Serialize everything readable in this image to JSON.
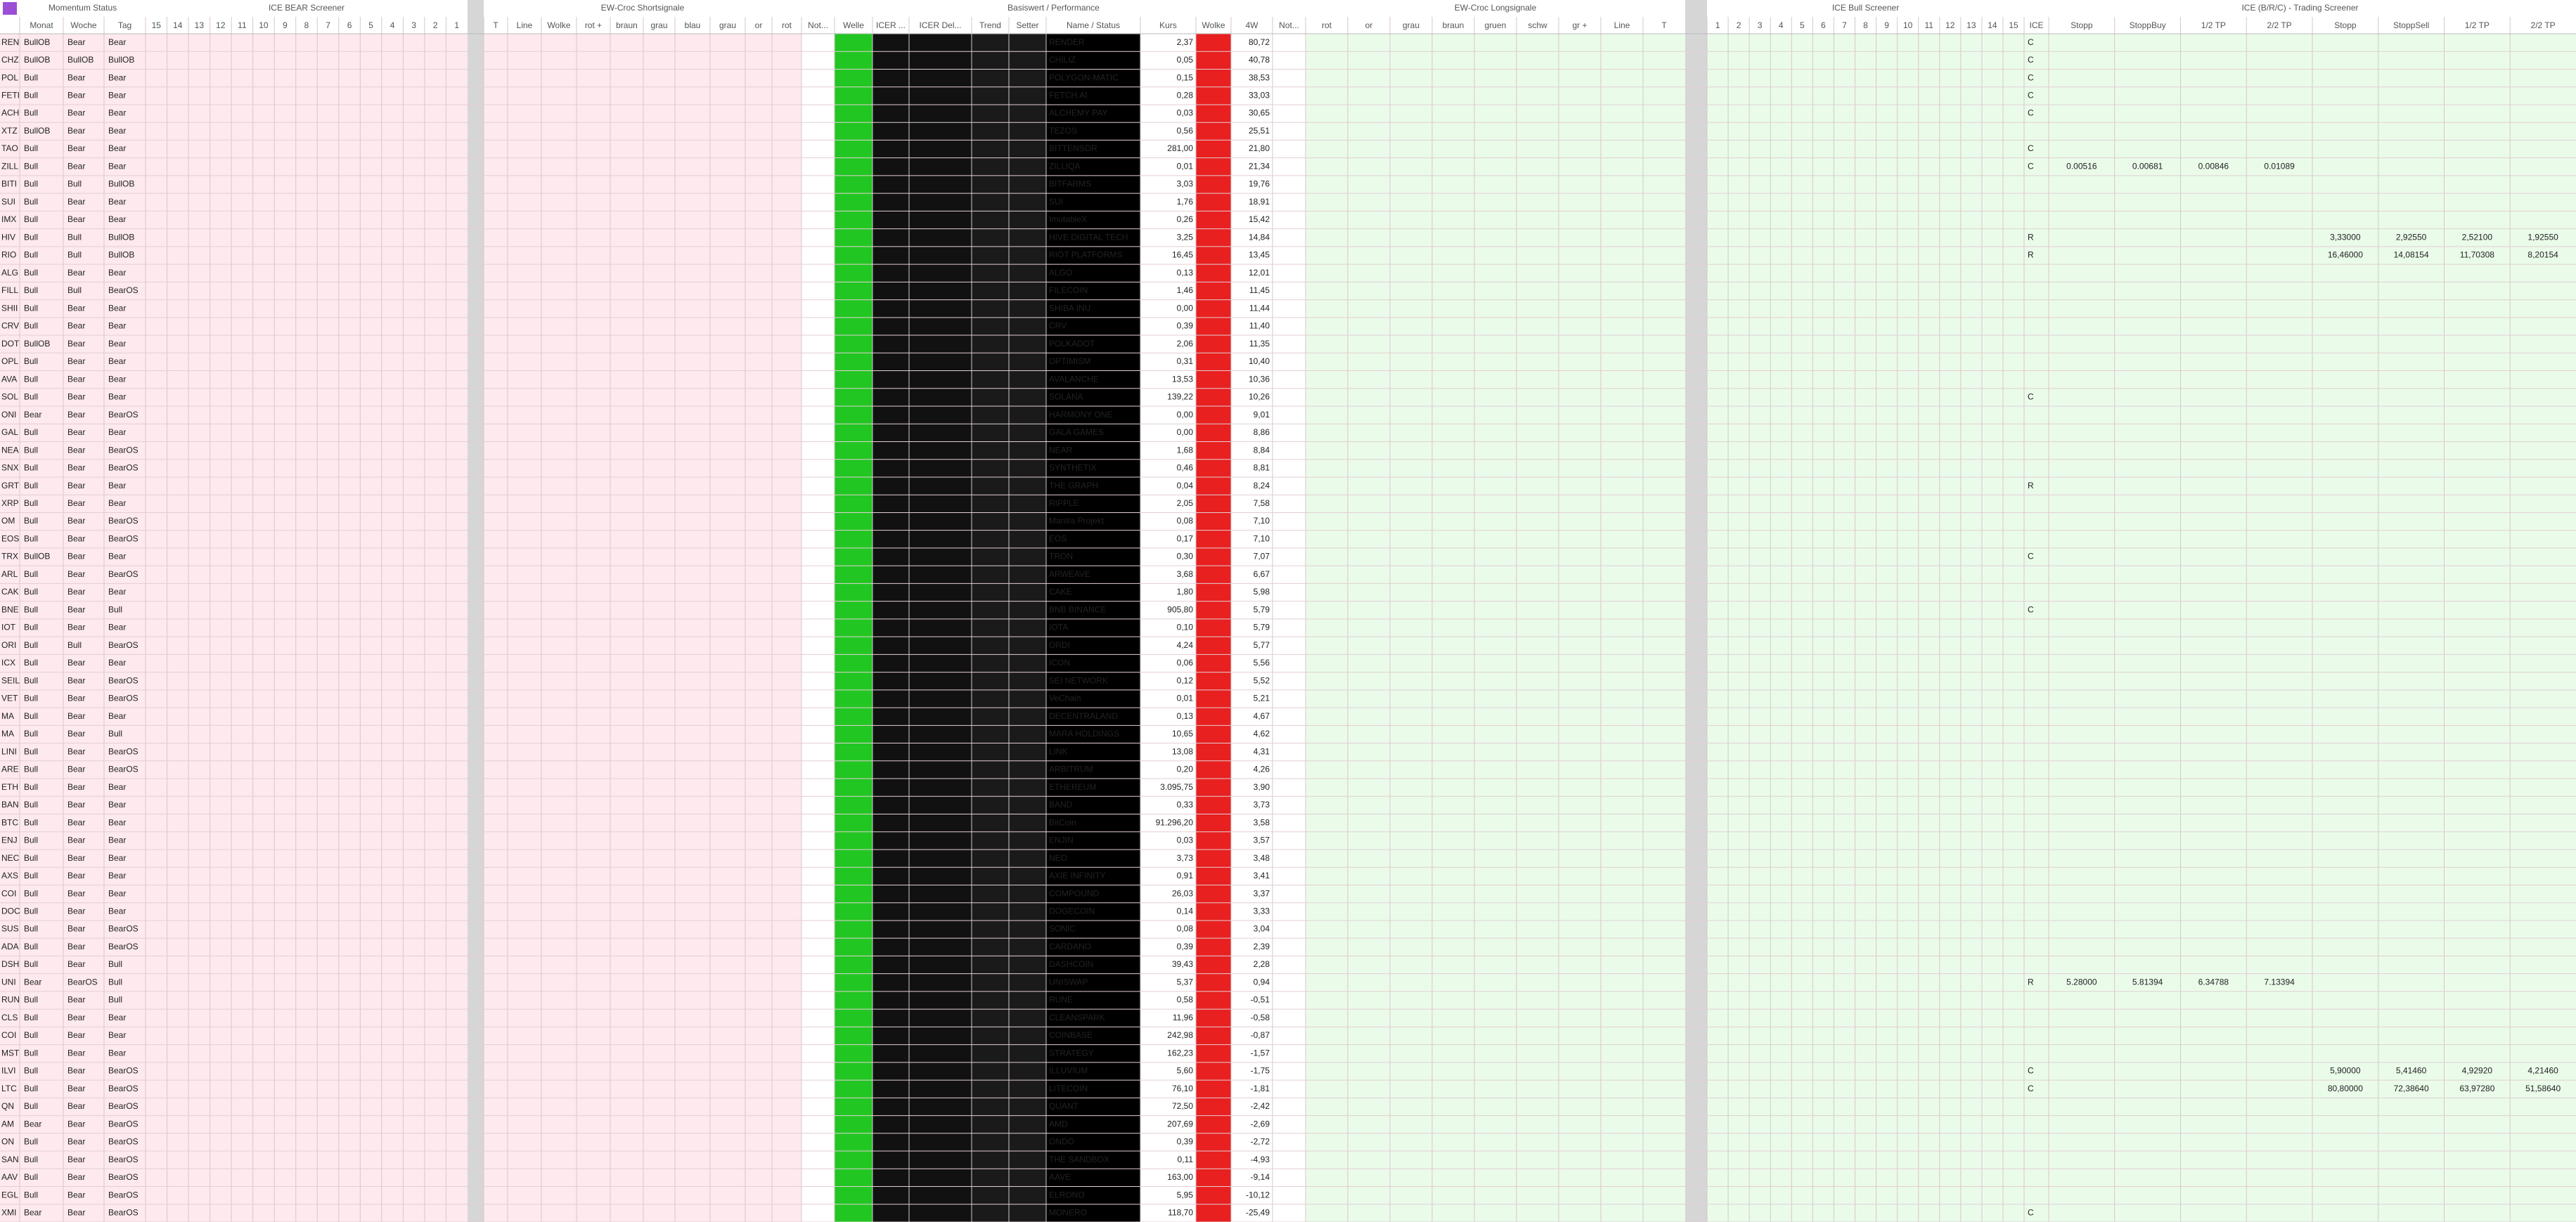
{
  "header": {
    "groups": [
      "Momentum Status",
      "ICE BEAR Screener",
      "EW-Croc Shortsignale",
      "Basiswert / Performance",
      "EW-Croc Longsignale",
      "ICE Bull Screener",
      "ICE (B/R/C) - Trading Screener"
    ],
    "columns": [
      "Monat",
      "Woche",
      "Tag",
      "15",
      "14",
      "13",
      "12",
      "11",
      "10",
      "9",
      "8",
      "7",
      "6",
      "5",
      "4",
      "3",
      "2",
      "1",
      "T",
      "Line",
      "Wolke",
      "rot +",
      "braun",
      "grau",
      "blau",
      "grau",
      "or",
      "rot",
      "Not...",
      "Welle",
      "ICER ...",
      "ICER Del...",
      "Trend",
      "Setter",
      "Name / Status",
      "Kurs",
      "Wolke",
      "4W",
      "Not...",
      "rot",
      "or",
      "grau",
      "braun",
      "gruen",
      "schw",
      "gr +",
      "Line",
      "T",
      "1",
      "2",
      "3",
      "4",
      "5",
      "6",
      "7",
      "8",
      "9",
      "10",
      "11",
      "12",
      "13",
      "14",
      "15",
      "ICE",
      "Stopp",
      "StoppBuy",
      "1/2 TP",
      "2/2 TP",
      "Stopp",
      "StoppSell",
      "1/2 TP",
      "2/2 TP"
    ]
  },
  "table": {
    "rows": [
      {
        "t": "REN",
        "m": "BullOB",
        "w": "Bear",
        "d": "Bear",
        "name": "RENDER",
        "kurs": "2,37",
        "w4": "80,72",
        "ice": "C"
      },
      {
        "t": "CHZ",
        "m": "BullOB",
        "w": "BullOB",
        "d": "BullOB",
        "name": "CHILIZ",
        "kurs": "0,05",
        "w4": "40,78",
        "ice": "C"
      },
      {
        "t": "POL",
        "m": "Bull",
        "w": "Bear",
        "d": "Bear",
        "name": "POLYGON-MATIC",
        "kurs": "0,15",
        "w4": "38,53",
        "ice": "C"
      },
      {
        "t": "FETI",
        "m": "Bull",
        "w": "Bear",
        "d": "Bear",
        "name": "FETCH.AI",
        "kurs": "0,28",
        "w4": "33,03",
        "ice": "C"
      },
      {
        "t": "ACH",
        "m": "Bull",
        "w": "Bear",
        "d": "Bear",
        "name": "ALCHEMY PAY",
        "kurs": "0,03",
        "w4": "30,65",
        "ice": "C"
      },
      {
        "t": "XTZ",
        "m": "BullOB",
        "w": "Bear",
        "d": "Bear",
        "name": "TEZOS",
        "kurs": "0,56",
        "w4": "25,51"
      },
      {
        "t": "TAO",
        "m": "Bull",
        "w": "Bear",
        "d": "Bear",
        "name": "BITTENSOR",
        "kurs": "281,00",
        "w4": "21,80",
        "ice": "C"
      },
      {
        "t": "ZILL",
        "m": "Bull",
        "w": "Bear",
        "d": "Bear",
        "name": "ZILLIQA",
        "kurs": "0,01",
        "w4": "21,34",
        "ice": "C",
        "buy": [
          "0.00516",
          "0.00681",
          "0.00846",
          "0.01089"
        ]
      },
      {
        "t": "BITI",
        "m": "Bull",
        "w": "Bull",
        "d": "BullOB",
        "name": "BITFARMS",
        "kurs": "3,03",
        "w4": "19,76"
      },
      {
        "t": "SUI",
        "m": "Bull",
        "w": "Bear",
        "d": "Bear",
        "name": "SUI",
        "kurs": "1,76",
        "w4": "18,91"
      },
      {
        "t": "IMX",
        "m": "Bull",
        "w": "Bear",
        "d": "Bear",
        "name": "ImutableX",
        "kurs": "0,26",
        "w4": "15,42"
      },
      {
        "t": "HIV",
        "m": "Bull",
        "w": "Bull",
        "d": "BullOB",
        "name": "HIVE DIGITAL TECH",
        "kurs": "3,25",
        "w4": "14,84",
        "ice": "R",
        "sell": [
          "3,33000",
          "2,92550",
          "2,52100",
          "1,92550"
        ]
      },
      {
        "t": "RIO",
        "m": "Bull",
        "w": "Bull",
        "d": "BullOB",
        "name": "RIOT PLATFORMS",
        "kurs": "16,45",
        "w4": "13,45",
        "ice": "R",
        "sell": [
          "16,46000",
          "14,08154",
          "11,70308",
          "8,20154"
        ]
      },
      {
        "t": "ALG",
        "m": "Bull",
        "w": "Bear",
        "d": "Bear",
        "name": "ALGO",
        "kurs": "0,13",
        "w4": "12,01"
      },
      {
        "t": "FILL",
        "m": "Bull",
        "w": "Bull",
        "d": "BearOS",
        "name": "FILECOIN",
        "kurs": "1,46",
        "w4": "11,45"
      },
      {
        "t": "SHII",
        "m": "Bull",
        "w": "Bear",
        "d": "Bear",
        "name": "SHIBA INU",
        "kurs": "0,00",
        "w4": "11,44"
      },
      {
        "t": "CRV",
        "m": "Bull",
        "w": "Bear",
        "d": "Bear",
        "name": "CRV",
        "kurs": "0,39",
        "w4": "11,40"
      },
      {
        "t": "DOT",
        "m": "BullOB",
        "w": "Bear",
        "d": "Bear",
        "name": "POLKADOT",
        "kurs": "2,06",
        "w4": "11,35"
      },
      {
        "t": "OPL",
        "m": "Bull",
        "w": "Bear",
        "d": "Bear",
        "name": "OPTIMISM",
        "kurs": "0,31",
        "w4": "10,40"
      },
      {
        "t": "AVA",
        "m": "Bull",
        "w": "Bear",
        "d": "Bear",
        "name": "AVALANCHE",
        "kurs": "13,53",
        "w4": "10,36"
      },
      {
        "t": "SOL",
        "m": "Bull",
        "w": "Bear",
        "d": "Bear",
        "name": "SOLANA",
        "kurs": "139,22",
        "w4": "10,26",
        "ice": "C"
      },
      {
        "t": "ONI",
        "m": "Bear",
        "w": "Bear",
        "d": "BearOS",
        "name": "HARMONY ONE",
        "kurs": "0,00",
        "w4": "9,01"
      },
      {
        "t": "GAL",
        "m": "Bull",
        "w": "Bear",
        "d": "Bear",
        "name": "GALA GAMES",
        "kurs": "0,00",
        "w4": "8,86"
      },
      {
        "t": "NEA",
        "m": "Bull",
        "w": "Bear",
        "d": "BearOS",
        "name": "NEAR",
        "kurs": "1,68",
        "w4": "8,84"
      },
      {
        "t": "SNX",
        "m": "Bull",
        "w": "Bear",
        "d": "BearOS",
        "name": "SYNTHETIX",
        "kurs": "0,46",
        "w4": "8,81"
      },
      {
        "t": "GRT",
        "m": "Bull",
        "w": "Bear",
        "d": "Bear",
        "name": "THE GRAPH",
        "kurs": "0,04",
        "w4": "8,24",
        "ice": "R"
      },
      {
        "t": "XRP",
        "m": "Bull",
        "w": "Bear",
        "d": "Bear",
        "name": "RIPPLE",
        "kurs": "2,05",
        "w4": "7,58"
      },
      {
        "t": "OM",
        "m": "Bull",
        "w": "Bear",
        "d": "BearOS",
        "name": "Mantra Projekt",
        "kurs": "0,08",
        "w4": "7,10"
      },
      {
        "t": "EOS",
        "m": "Bull",
        "w": "Bear",
        "d": "BearOS",
        "name": "EOS",
        "kurs": "0,17",
        "w4": "7,10"
      },
      {
        "t": "TRX",
        "m": "BullOB",
        "w": "Bear",
        "d": "Bear",
        "name": "TRON",
        "kurs": "0,30",
        "w4": "7,07",
        "ice": "C"
      },
      {
        "t": "ARL",
        "m": "Bull",
        "w": "Bear",
        "d": "BearOS",
        "name": "ARWEAVE",
        "kurs": "3,68",
        "w4": "6,67"
      },
      {
        "t": "CAK",
        "m": "Bull",
        "w": "Bear",
        "d": "Bear",
        "name": "CAKE",
        "kurs": "1,80",
        "w4": "5,98"
      },
      {
        "t": "BNE",
        "m": "Bull",
        "w": "Bear",
        "d": "Bull",
        "name": "BNB BINANCE",
        "kurs": "905,80",
        "w4": "5,79",
        "ice": "C"
      },
      {
        "t": "IOT",
        "m": "Bull",
        "w": "Bear",
        "d": "Bear",
        "name": "IOTA",
        "kurs": "0,10",
        "w4": "5,79"
      },
      {
        "t": "ORI",
        "m": "Bull",
        "w": "Bull",
        "d": "BearOS",
        "name": "ORDI",
        "kurs": "4,24",
        "w4": "5,77"
      },
      {
        "t": "ICX",
        "m": "Bull",
        "w": "Bear",
        "d": "Bear",
        "name": "ICON",
        "kurs": "0,06",
        "w4": "5,56"
      },
      {
        "t": "SEIL",
        "m": "Bull",
        "w": "Bear",
        "d": "BearOS",
        "name": "SEI NETWORK",
        "kurs": "0,12",
        "w4": "5,52"
      },
      {
        "t": "VET",
        "m": "Bull",
        "w": "Bear",
        "d": "BearOS",
        "name": "VeChain",
        "kurs": "0,01",
        "w4": "5,21"
      },
      {
        "t": "MA",
        "m": "Bull",
        "w": "Bear",
        "d": "Bear",
        "name": "DECENTRALAND",
        "kurs": "0,13",
        "w4": "4,67"
      },
      {
        "t": "MA",
        "m": "Bull",
        "w": "Bear",
        "d": "Bull",
        "name": "MARA HOLDINGS",
        "kurs": "10,65",
        "w4": "4,62"
      },
      {
        "t": "LINI",
        "m": "Bull",
        "w": "Bear",
        "d": "BearOS",
        "name": "LINK",
        "kurs": "13,08",
        "w4": "4,31"
      },
      {
        "t": "ARE",
        "m": "Bull",
        "w": "Bear",
        "d": "BearOS",
        "name": "ARBITRUM",
        "kurs": "0,20",
        "w4": "4,26"
      },
      {
        "t": "ETH",
        "m": "Bull",
        "w": "Bear",
        "d": "Bear",
        "name": "ETHEREUM",
        "kurs": "3.095,75",
        "w4": "3,90"
      },
      {
        "t": "BAN",
        "m": "Bull",
        "w": "Bear",
        "d": "Bear",
        "name": "BAND",
        "kurs": "0,33",
        "w4": "3,73"
      },
      {
        "t": "BTC",
        "m": "Bull",
        "w": "Bear",
        "d": "Bear",
        "name": "BitCoin",
        "kurs": "91.296,20",
        "w4": "3,58"
      },
      {
        "t": "ENJ",
        "m": "Bull",
        "w": "Bear",
        "d": "Bear",
        "name": "ENJIN",
        "kurs": "0,03",
        "w4": "3,57"
      },
      {
        "t": "NEC",
        "m": "Bull",
        "w": "Bear",
        "d": "Bear",
        "name": "NEO",
        "kurs": "3,73",
        "w4": "3,48"
      },
      {
        "t": "AXS",
        "m": "Bull",
        "w": "Bear",
        "d": "Bear",
        "name": "AXIE INFINITY",
        "kurs": "0,91",
        "w4": "3,41"
      },
      {
        "t": "COI",
        "m": "Bull",
        "w": "Bear",
        "d": "Bear",
        "name": "COMPOUND",
        "kurs": "26,03",
        "w4": "3,37"
      },
      {
        "t": "DOC",
        "m": "Bull",
        "w": "Bear",
        "d": "Bear",
        "name": "DOGECOIN",
        "kurs": "0,14",
        "w4": "3,33"
      },
      {
        "t": "SUS",
        "m": "Bull",
        "w": "Bear",
        "d": "BearOS",
        "name": "SONIC",
        "kurs": "0,08",
        "w4": "3,04"
      },
      {
        "t": "ADA",
        "m": "Bull",
        "w": "Bear",
        "d": "BearOS",
        "name": "CARDANO",
        "kurs": "0,39",
        "w4": "2,39"
      },
      {
        "t": "DSH",
        "m": "Bull",
        "w": "Bear",
        "d": "Bull",
        "name": "DASHCOIN",
        "kurs": "39,43",
        "w4": "2,28"
      },
      {
        "t": "UNI",
        "m": "Bear",
        "w": "BearOS",
        "d": "Bull",
        "name": "UNISWAP",
        "kurs": "5,37",
        "w4": "0,94",
        "ice": "R",
        "buy": [
          "5.28000",
          "5.81394",
          "6.34788",
          "7.13394"
        ]
      },
      {
        "t": "RUN",
        "m": "Bull",
        "w": "Bear",
        "d": "Bull",
        "name": "RUNE",
        "kurs": "0,58",
        "w4": "-0,51"
      },
      {
        "t": "CLS",
        "m": "Bull",
        "w": "Bear",
        "d": "Bear",
        "name": "CLEANSPARK",
        "kurs": "11,96",
        "w4": "-0,58"
      },
      {
        "t": "COI",
        "m": "Bull",
        "w": "Bear",
        "d": "Bear",
        "name": "COINBASE",
        "kurs": "242,98",
        "w4": "-0,87"
      },
      {
        "t": "MST",
        "m": "Bull",
        "w": "Bear",
        "d": "Bear",
        "name": "STRATEGY",
        "kurs": "162,23",
        "w4": "-1,57"
      },
      {
        "t": "ILVI",
        "m": "Bull",
        "w": "Bear",
        "d": "BearOS",
        "name": "ILLUVIUM",
        "kurs": "5,60",
        "w4": "-1,75",
        "ice": "C",
        "sell": [
          "5,90000",
          "5,41460",
          "4,92920",
          "4,21460"
        ]
      },
      {
        "t": "LTC",
        "m": "Bull",
        "w": "Bear",
        "d": "BearOS",
        "name": "LITECOIN",
        "kurs": "76,10",
        "w4": "-1,81",
        "ice": "C",
        "sell": [
          "80,80000",
          "72,38640",
          "63,97280",
          "51,58640"
        ]
      },
      {
        "t": "QN",
        "m": "Bull",
        "w": "Bear",
        "d": "BearOS",
        "name": "QUANT",
        "kurs": "72,50",
        "w4": "-2,42"
      },
      {
        "t": "AM",
        "m": "Bear",
        "w": "Bear",
        "d": "BearOS",
        "name": "AMD",
        "kurs": "207,69",
        "w4": "-2,69"
      },
      {
        "t": "ON",
        "m": "Bull",
        "w": "Bear",
        "d": "BearOS",
        "name": "ONDO",
        "kurs": "0,39",
        "w4": "-2,72"
      },
      {
        "t": "SAN",
        "m": "Bull",
        "w": "Bear",
        "d": "BearOS",
        "name": "THE SANDBOX",
        "kurs": "0,11",
        "w4": "-4,93"
      },
      {
        "t": "AAV",
        "m": "Bull",
        "w": "Bear",
        "d": "BearOS",
        "name": "AAVE",
        "kurs": "163,00",
        "w4": "-9,14"
      },
      {
        "t": "EGL",
        "m": "Bull",
        "w": "Bear",
        "d": "BearOS",
        "name": "ELRONO",
        "kurs": "5,95",
        "w4": "-10,12"
      },
      {
        "t": "XMI",
        "m": "Bear",
        "w": "Bear",
        "d": "BearOS",
        "name": "MONERO",
        "kurs": "118,70",
        "w4": "-25,49",
        "ice": "C"
      }
    ]
  }
}
